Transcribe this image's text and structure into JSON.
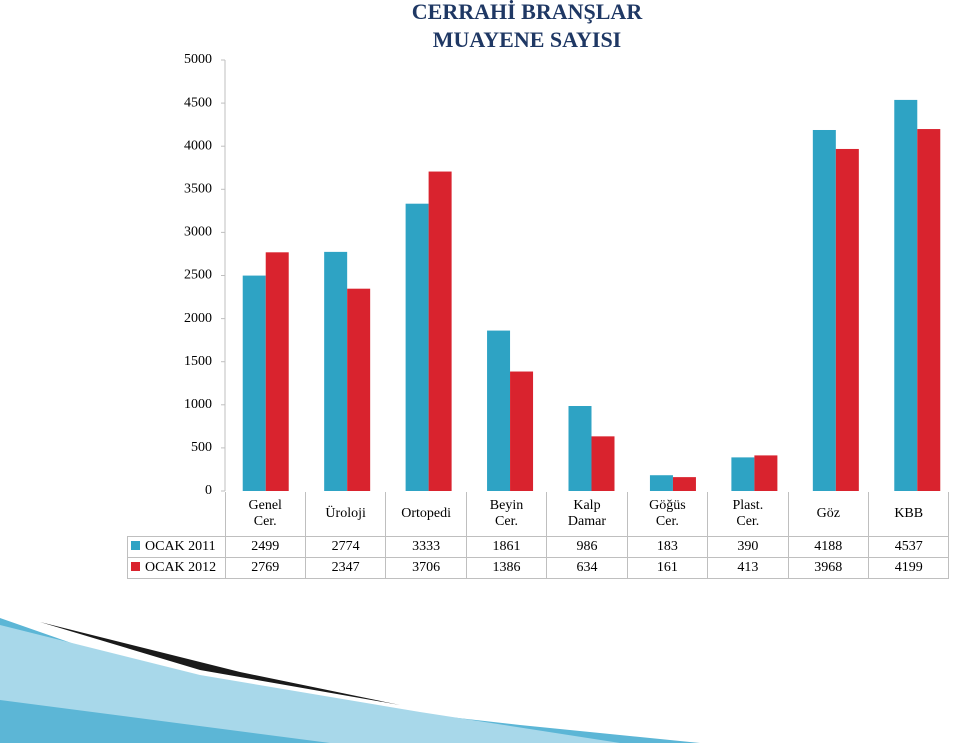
{
  "chart_data": {
    "type": "bar",
    "title": [
      "CERRAHİ BRANŞLAR",
      "MUAYENE SAYISI"
    ],
    "categories": [
      "Genel Cer.",
      "Üroloji",
      "Ortopedi",
      "Beyin Cer.",
      "Kalp Damar",
      "Göğüs Cer.",
      "Plast. Cer.",
      "Göz",
      "KBB"
    ],
    "series": [
      {
        "name": "OCAK 2011",
        "color": "#2ea3c4",
        "values": [
          2499,
          2774,
          3333,
          1861,
          986,
          183,
          390,
          4188,
          4537
        ]
      },
      {
        "name": "OCAK 2012",
        "color": "#d9232e",
        "values": [
          2769,
          2347,
          3706,
          1386,
          634,
          161,
          413,
          3968,
          4199
        ]
      }
    ],
    "ylim": [
      0,
      5000
    ],
    "yticks": [
      0,
      500,
      1000,
      1500,
      2000,
      2500,
      3000,
      3500,
      4000,
      4500,
      5000
    ],
    "grid": false
  }
}
